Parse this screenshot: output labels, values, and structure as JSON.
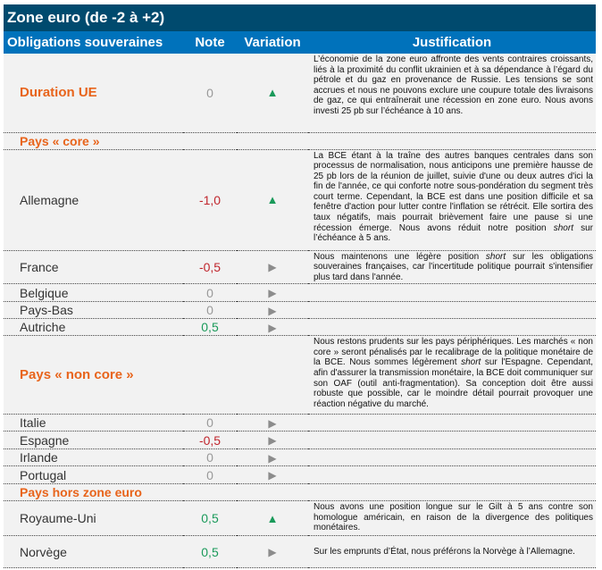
{
  "title": "Zone euro (de -2 à +2)",
  "headers": {
    "name": "Obligations souveraines",
    "note": "Note",
    "variation": "Variation",
    "justification": "Justification"
  },
  "colors": {
    "title_bg": "#004a6e",
    "header_bg": "#0072bb",
    "accent": "#e8641b",
    "positive": "#1a9a5a",
    "negative": "#c0262d",
    "neutral": "#999999",
    "arrow_flat": "#8c8c8c"
  },
  "rows": [
    {
      "type": "main",
      "name": "Duration UE",
      "note": "0",
      "note_tone": "neutral",
      "variation": "up-arrow-icon",
      "justification": [
        {
          "t": "L’économie de la zone euro affronte des vents contraires croissants, liés à la proximité du conflit ukrainien et à sa dépendance à l’égard du pétrole et du gaz en provenance de Russie. Les tensions se sont accrues et nous ne pouvons exclure une coupure totale des livraisons de gaz, ce qui entraînerait une récession en zone euro. Nous avons investi 25 pb sur l’échéance à 10 ans."
        }
      ]
    },
    {
      "type": "section",
      "name": "Pays « core »"
    },
    {
      "type": "item",
      "name": "Allemagne",
      "note": "-1,0",
      "note_tone": "negative",
      "variation": "up-arrow-icon",
      "justification": [
        {
          "t": "La BCE étant à la traîne des autres banques centrales dans son processus de normalisation, nous anticipons une première hausse de 25 pb lors de la réunion de juillet, suivie d'une ou deux autres d'ici la fin de l'année, ce qui conforte notre sous-pondération du segment très court terme. Cependant, la BCE est dans une position difficile et sa fenêtre d'action pour lutter contre l'inflation se rétrécit. Elle sortira des taux négatifs, mais pourrait brièvement faire une pause si une récession émerge. Nous avons réduit notre position "
        },
        {
          "i": "short"
        },
        {
          "t": " sur l’échéance à 5 ans."
        }
      ]
    },
    {
      "type": "item",
      "name": "France",
      "note": "-0,5",
      "note_tone": "negative",
      "variation": "right-arrow-icon",
      "justification": [
        {
          "t": "Nous maintenons une légère position "
        },
        {
          "i": "short"
        },
        {
          "t": " sur les obligations souveraines françaises, car l'incertitude politique pourrait s'intensifier plus tard dans l'année."
        }
      ]
    },
    {
      "type": "item",
      "name": "Belgique",
      "note": "0",
      "note_tone": "neutral",
      "variation": "right-arrow-icon",
      "justification": []
    },
    {
      "type": "item",
      "name": "Pays-Bas",
      "note": "0",
      "note_tone": "neutral",
      "variation": "right-arrow-icon",
      "justification": []
    },
    {
      "type": "item",
      "name": "Autriche",
      "note": "0,5",
      "note_tone": "positive",
      "variation": "right-arrow-icon",
      "justification": []
    },
    {
      "type": "main",
      "name": "Pays « non core »",
      "note": "",
      "variation": "",
      "justification": [
        {
          "t": "Nous restons prudents sur les pays périphériques. Les marchés « non core » seront pénalisés par le recalibrage de la politique monétaire de la BCE. Nous sommes légèrement "
        },
        {
          "i": "short"
        },
        {
          "t": " sur l'Espagne. Cependant, afin d'assurer la transmission monétaire, la BCE doit communiquer sur son OAF (outil anti-fragmentation). Sa conception doit être aussi robuste que possible, car le moindre détail pourrait provoquer une réaction négative du marché."
        }
      ]
    },
    {
      "type": "item",
      "name": "Italie",
      "note": "0",
      "note_tone": "neutral",
      "variation": "right-arrow-icon",
      "justification": []
    },
    {
      "type": "item",
      "name": "Espagne",
      "note": "-0,5",
      "note_tone": "negative",
      "variation": "right-arrow-icon",
      "justification": []
    },
    {
      "type": "item",
      "name": "Irlande",
      "note": "0",
      "note_tone": "neutral",
      "variation": "right-arrow-icon",
      "justification": []
    },
    {
      "type": "item",
      "name": "Portugal",
      "note": "0",
      "note_tone": "neutral",
      "variation": "right-arrow-icon",
      "justification": []
    },
    {
      "type": "section",
      "name": "Pays hors zone euro"
    },
    {
      "type": "item",
      "name": "Royaume-Uni",
      "note": "0,5",
      "note_tone": "positive",
      "variation": "up-arrow-icon",
      "justification": [
        {
          "t": "Nous avons une position longue sur le Gilt à 5 ans contre son homologue américain, en raison de la divergence des politiques monétaires."
        }
      ]
    },
    {
      "type": "item",
      "name": "Norvège",
      "note": "0,5",
      "note_tone": "positive",
      "variation": "right-arrow-icon",
      "justification": [
        {
          "t": "Sur les emprunts d’État, nous préférons la Norvège à l’Allemagne."
        }
      ]
    }
  ]
}
